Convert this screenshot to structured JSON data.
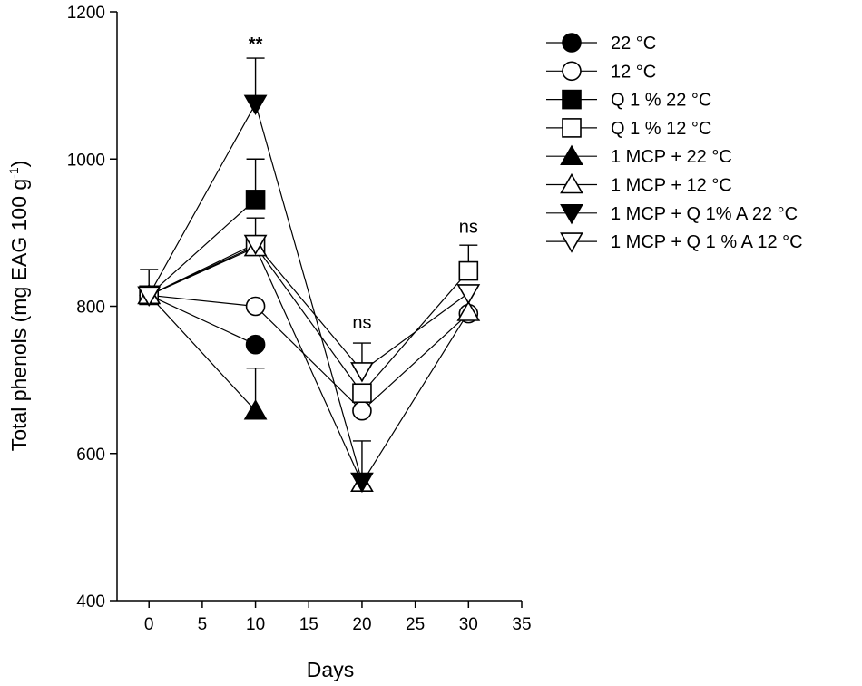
{
  "chart_data": {
    "type": "line",
    "title": "",
    "xlabel": "Days",
    "ylabel": "Total phenols (mg EAG 100 g",
    "ylabel_sup": "-1",
    "ylabel_close": ")",
    "xlim": [
      -3,
      35
    ],
    "ylim": [
      400,
      1200
    ],
    "x_ticks": [
      0,
      5,
      10,
      15,
      20,
      25,
      30,
      35
    ],
    "y_ticks": [
      400,
      600,
      800,
      1000,
      1200
    ],
    "grid": false,
    "legend_position": "top-right, outside plot",
    "series": [
      {
        "name": "22 °C",
        "marker": "circle",
        "filled": true,
        "x": [
          0,
          10
        ],
        "y": [
          815,
          748
        ],
        "err": [
          null,
          null
        ]
      },
      {
        "name": "12 °C",
        "marker": "circle",
        "filled": false,
        "x": [
          0,
          10,
          20,
          30
        ],
        "y": [
          815,
          800,
          658,
          790
        ],
        "err": [
          null,
          null,
          null,
          null
        ]
      },
      {
        "name": "Q 1 % 22 °C",
        "marker": "square",
        "filled": true,
        "x": [
          0,
          10
        ],
        "y": [
          815,
          945
        ],
        "err": [
          null,
          55
        ]
      },
      {
        "name": "Q 1 % 12 °C",
        "marker": "square",
        "filled": false,
        "x": [
          0,
          10,
          20,
          30
        ],
        "y": [
          815,
          882,
          682,
          848
        ],
        "err": [
          null,
          38,
          null,
          35
        ]
      },
      {
        "name": "1 MCP + 22 °C",
        "marker": "triangle-up",
        "filled": true,
        "x": [
          0,
          10
        ],
        "y": [
          815,
          658
        ],
        "err": [
          null,
          58
        ]
      },
      {
        "name": "1 MCP + 12 °C",
        "marker": "triangle-up",
        "filled": false,
        "x": [
          0,
          10,
          20,
          30
        ],
        "y": [
          815,
          880,
          560,
          792
        ],
        "err": [
          null,
          null,
          57,
          null
        ]
      },
      {
        "name": "1 MCP + Q 1% A 22 °C",
        "marker": "triangle-down",
        "filled": true,
        "x": [
          0,
          10,
          20
        ],
        "y": [
          815,
          1075,
          562
        ],
        "err": [
          null,
          62,
          null
        ]
      },
      {
        "name": "1 MCP + Q 1 % A 12 °C",
        "marker": "triangle-down",
        "filled": false,
        "x": [
          0,
          10,
          20,
          30
        ],
        "y": [
          815,
          885,
          712,
          818
        ],
        "err": [
          35,
          null,
          38,
          null
        ]
      }
    ],
    "annotations": [
      {
        "text": "**",
        "x": 10,
        "y": 1148,
        "bold": true
      },
      {
        "text": "ns",
        "x": 20,
        "y": 770,
        "bold": false
      },
      {
        "text": "ns",
        "x": 30,
        "y": 900,
        "bold": false
      }
    ]
  }
}
